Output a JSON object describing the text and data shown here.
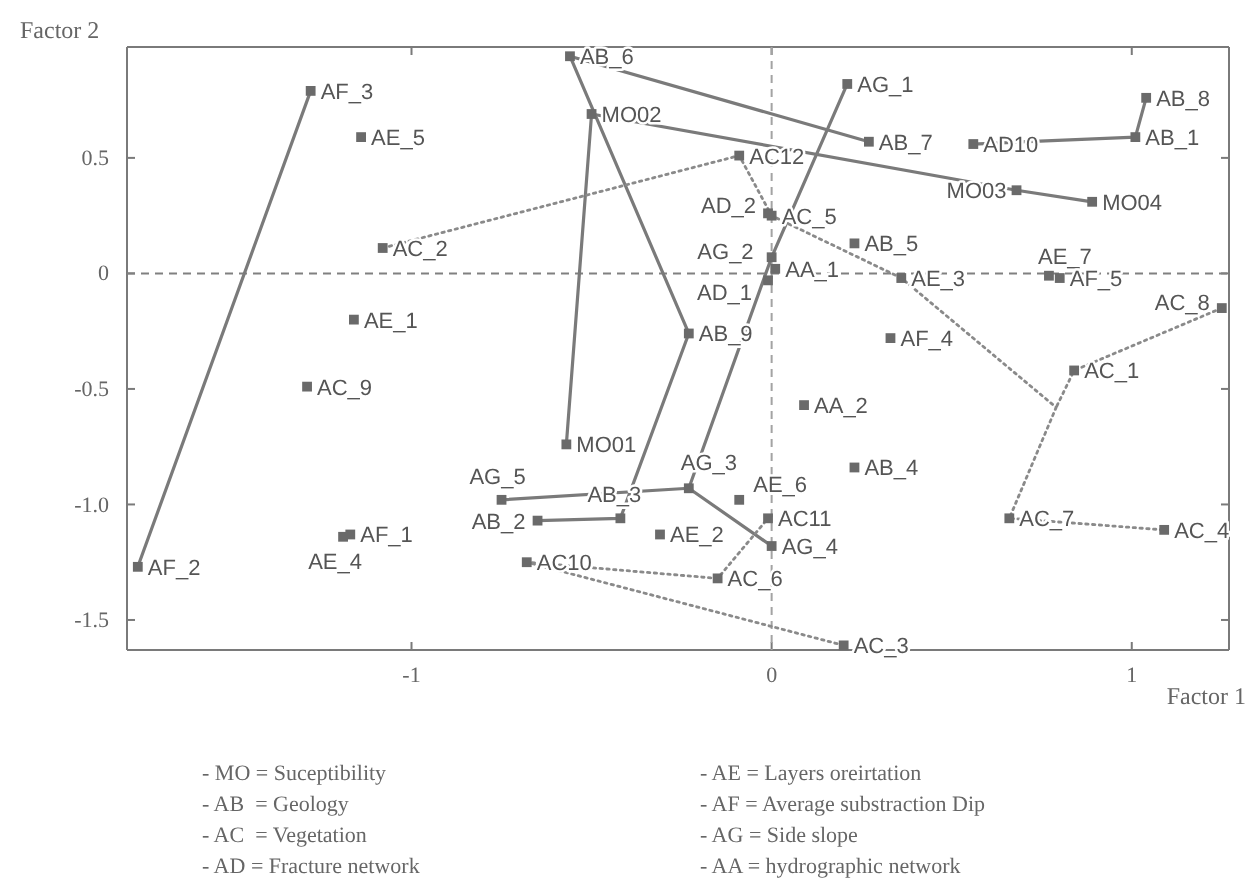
{
  "chart_data": {
    "type": "scatter",
    "xlabel": "Factor 1",
    "ylabel": "Factor 2",
    "marker": "square",
    "xlim": [
      -1.79,
      1.27
    ],
    "ylim": [
      -1.63,
      0.98
    ],
    "xticks": [
      -1,
      0,
      1
    ],
    "yticks": [
      {
        "value": -1.5,
        "label": "-1.5"
      },
      {
        "value": -1,
        "label": "-1.0"
      },
      {
        "value": -0.5,
        "label": "-0.5"
      },
      0,
      0.5
    ],
    "ref_lines": [
      {
        "axis": "x",
        "value": 0,
        "color": "#a3a3a3",
        "line_style": "dashed"
      },
      {
        "axis": "y",
        "value": 0,
        "color": "#808080",
        "line_style": "dashed"
      }
    ],
    "series": [
      {
        "type": "line",
        "color": "#7a7a7a",
        "marker": "none",
        "line_style": "solid",
        "x": [
          -1.28,
          -1.76
        ],
        "values": [
          0.79,
          -1.27
        ]
      },
      {
        "type": "line",
        "color": "#7a7a7a",
        "marker": "none",
        "line_style": "solid",
        "x": [
          0.27,
          -0.56,
          -0.23,
          -0.42,
          -0.65
        ],
        "values": [
          0.57,
          0.94,
          -0.26,
          -1.06,
          -1.07
        ]
      },
      {
        "type": "line",
        "color": "#7a7a7a",
        "marker": "none",
        "line_style": "solid",
        "x": [
          -0.57,
          -0.5,
          0.68,
          0.89
        ],
        "values": [
          -0.74,
          0.69,
          0.36,
          0.31
        ]
      },
      {
        "type": "line",
        "color": "#7a7a7a",
        "marker": "none",
        "line_style": "solid",
        "x": [
          0.56,
          1.01,
          1.04
        ],
        "values": [
          0.56,
          0.59,
          0.76
        ]
      },
      {
        "type": "line",
        "color": "#7a7a7a",
        "marker": "none",
        "line_style": "solid",
        "x": [
          0.21,
          0.0,
          -0.23,
          0.0
        ],
        "values": [
          0.82,
          0.07,
          -0.93,
          -1.18
        ]
      },
      {
        "type": "line",
        "color": "#7a7a7a",
        "marker": "none",
        "line_style": "solid",
        "x": [
          -0.75,
          -0.23
        ],
        "values": [
          -0.98,
          -0.93
        ]
      },
      {
        "type": "line",
        "color": "#8a8a8a",
        "marker": "none",
        "line_style": "dotted",
        "x": [
          -1.08,
          -0.09,
          0.0,
          0.36,
          0.79,
          0.66,
          1.09
        ],
        "values": [
          0.11,
          0.51,
          0.25,
          -0.02,
          -0.58,
          -1.06,
          -1.11
        ]
      },
      {
        "type": "line",
        "color": "#8a8a8a",
        "marker": "none",
        "line_style": "dotted",
        "x": [
          1.25,
          0.84,
          0.79
        ],
        "values": [
          -0.15,
          -0.42,
          -0.58
        ]
      },
      {
        "type": "line",
        "color": "#8a8a8a",
        "marker": "none",
        "line_style": "dotted",
        "x": [
          0.2,
          -0.68,
          -0.15,
          -0.01
        ],
        "values": [
          -1.61,
          -1.25,
          -1.32,
          -1.06
        ]
      },
      {
        "color": "#6a6a6a",
        "x": [
          -1.28,
          -1.14,
          -1.08,
          -1.16,
          -0.56,
          -0.5,
          0.21,
          0.27,
          0.56,
          1.04,
          1.01,
          -0.09,
          0.68,
          0.89,
          -0.01,
          0.0,
          0.23,
          0.36,
          0.0,
          -0.01,
          0.01,
          0.77,
          0.8,
          1.25,
          -1.29,
          -0.57,
          -0.75,
          -0.42,
          -0.65,
          -1.17,
          -1.19,
          -1.76,
          -0.68,
          -0.23,
          0.33,
          0.84,
          0.09,
          -0.23,
          -0.09,
          0.23,
          -0.01,
          0.0,
          -0.31,
          -0.15,
          0.2,
          0.66,
          1.09
        ],
        "values": [
          0.79,
          0.59,
          0.11,
          -0.2,
          0.94,
          0.69,
          0.82,
          0.57,
          0.56,
          0.76,
          0.59,
          0.51,
          0.36,
          0.31,
          0.26,
          0.25,
          0.13,
          -0.02,
          0.07,
          -0.03,
          0.02,
          -0.01,
          -0.02,
          -0.15,
          -0.49,
          -0.74,
          -0.98,
          -1.06,
          -1.07,
          -1.13,
          -1.14,
          -1.27,
          -1.25,
          -0.26,
          -0.28,
          -0.42,
          -0.57,
          -0.93,
          -0.98,
          -0.84,
          -1.06,
          -1.18,
          -1.13,
          -1.32,
          -1.61,
          -1.06,
          -1.11
        ]
      }
    ],
    "annotations": [
      {
        "text": "AF_3",
        "x": -1.28,
        "y": 0.79
      },
      {
        "text": "AE_5",
        "x": -1.14,
        "y": 0.59
      },
      {
        "text": "AC_2",
        "x": -1.08,
        "y": 0.11
      },
      {
        "text": "AE_1",
        "x": -1.16,
        "y": -0.2
      },
      {
        "text": "AB_6",
        "x": -0.56,
        "y": 0.94
      },
      {
        "text": "MO02",
        "x": -0.5,
        "y": 0.69
      },
      {
        "text": "AG_1",
        "x": 0.21,
        "y": 0.82
      },
      {
        "text": "AB_7",
        "x": 0.27,
        "y": 0.57
      },
      {
        "text": "AD10",
        "x": 0.56,
        "y": 0.56
      },
      {
        "text": "AB_8",
        "x": 1.04,
        "y": 0.76
      },
      {
        "text": "AB_1",
        "x": 1.01,
        "y": 0.59
      },
      {
        "text": "AC12",
        "x": -0.09,
        "y": 0.51
      },
      {
        "text": "MO03",
        "x": 0.68,
        "y": 0.36
      },
      {
        "text": "MO04",
        "x": 0.89,
        "y": 0.31
      },
      {
        "text": "AD_2",
        "x": -0.01,
        "y": 0.26
      },
      {
        "text": "AC_5",
        "x": 0.0,
        "y": 0.25
      },
      {
        "text": "AB_5",
        "x": 0.23,
        "y": 0.13
      },
      {
        "text": "AE_3",
        "x": 0.36,
        "y": -0.02
      },
      {
        "text": "AG_2",
        "x": 0.0,
        "y": 0.07
      },
      {
        "text": "AD_1",
        "x": -0.01,
        "y": -0.03
      },
      {
        "text": "AA_1",
        "x": 0.01,
        "y": 0.02
      },
      {
        "text": "AE_7",
        "x": 0.77,
        "y": -0.01
      },
      {
        "text": "AF_5",
        "x": 0.8,
        "y": -0.02
      },
      {
        "text": "AC_8",
        "x": 1.25,
        "y": -0.15
      },
      {
        "text": "AC_9",
        "x": -1.29,
        "y": -0.49
      },
      {
        "text": "MO01",
        "x": -0.57,
        "y": -0.74
      },
      {
        "text": "AG_5",
        "x": -0.75,
        "y": -0.98
      },
      {
        "text": "AB_3",
        "x": -0.42,
        "y": -1.06
      },
      {
        "text": "AB_2",
        "x": -0.65,
        "y": -1.07
      },
      {
        "text": "AF_1",
        "x": -1.17,
        "y": -1.13
      },
      {
        "text": "AE_4",
        "x": -1.19,
        "y": -1.14
      },
      {
        "text": "AF_2",
        "x": -1.76,
        "y": -1.27
      },
      {
        "text": "AC10",
        "x": -0.68,
        "y": -1.25
      },
      {
        "text": "AB_9",
        "x": -0.23,
        "y": -0.26
      },
      {
        "text": "AF_4",
        "x": 0.33,
        "y": -0.28
      },
      {
        "text": "AC_1",
        "x": 0.84,
        "y": -0.42
      },
      {
        "text": "AA_2",
        "x": 0.09,
        "y": -0.57
      },
      {
        "text": "AG_3",
        "x": -0.23,
        "y": -0.93
      },
      {
        "text": "AE_6",
        "x": -0.09,
        "y": -0.98
      },
      {
        "text": "AB_4",
        "x": 0.23,
        "y": -0.84
      },
      {
        "text": "AC11",
        "x": -0.01,
        "y": -1.06
      },
      {
        "text": "AG_4",
        "x": 0.0,
        "y": -1.18
      },
      {
        "text": "AE_2",
        "x": -0.31,
        "y": -1.13
      },
      {
        "text": "AC_6",
        "x": -0.15,
        "y": -1.32
      },
      {
        "text": "AC_3",
        "x": 0.2,
        "y": -1.61
      },
      {
        "text": "AC_7",
        "x": 0.66,
        "y": -1.06
      },
      {
        "text": "AC_4",
        "x": 1.09,
        "y": -1.11
      },
      "- MO = Suceptibility",
      "- AB  = Geology",
      "- AC  = Vegetation",
      "- AD = Fracture network",
      "- AE = Layers oreirtation",
      "- AF = Average substraction Dip",
      "- AG = Side slope",
      "- AA = hydrographic network"
    ]
  }
}
